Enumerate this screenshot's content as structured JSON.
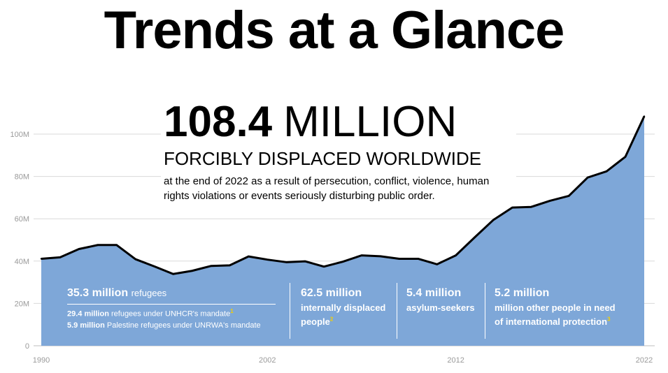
{
  "title": "Trends at a Glance",
  "headline": {
    "number": "108.4",
    "unit": "MILLION",
    "subtitle": "FORCIBLY DISPLACED WORLDWIDE",
    "description": "at the end of 2022 as a result of persecution, conflict, violence, human rights violations or events seriously disturbing public order."
  },
  "breakdown": {
    "refugees": {
      "title": "35.3 million",
      "title_unit": "refugees",
      "lines": [
        {
          "value": "29.4 million",
          "text": "refugees under UNHCR's mandate",
          "note": "1"
        },
        {
          "value": "5.9 million",
          "text": "Palestine refugees under UNRWA's mandate",
          "note": ""
        }
      ]
    },
    "idps": {
      "title": "62.5 million",
      "line1": "internally displaced",
      "line2": "people",
      "note": "2"
    },
    "asylum": {
      "title": "5.4 million",
      "line1": "asylum-seekers"
    },
    "other": {
      "title": "5.2 million",
      "line1": "million other people in need",
      "line2": "of international protection",
      "note": "3"
    }
  },
  "colors": {
    "area": "#7ea7d8",
    "line": "#000000",
    "grid": "#d9d9d9",
    "tick": "#9a9a9a"
  },
  "chart_data": {
    "type": "area",
    "x": [
      1990,
      1991,
      1992,
      1993,
      1994,
      1995,
      1996,
      1997,
      1998,
      1999,
      2000,
      2001,
      2002,
      2003,
      2004,
      2005,
      2006,
      2007,
      2008,
      2009,
      2010,
      2011,
      2012,
      2013,
      2014,
      2015,
      2016,
      2017,
      2018,
      2019,
      2020,
      2021,
      2022
    ],
    "y": [
      41.1,
      41.8,
      45.7,
      47.6,
      47.6,
      40.9,
      37.5,
      33.9,
      35.4,
      37.7,
      38.0,
      42.2,
      40.7,
      39.5,
      39.9,
      37.4,
      39.7,
      42.7,
      42.3,
      41.1,
      41.1,
      38.5,
      42.7,
      51.2,
      59.5,
      65.3,
      65.6,
      68.5,
      70.8,
      79.5,
      82.4,
      89.3,
      108.4
    ],
    "y_ticks": [
      "0",
      "20M",
      "40M",
      "60M",
      "80M",
      "100M"
    ],
    "x_ticks": [
      "1990",
      "2002",
      "2012",
      "2022"
    ],
    "ylim": [
      0,
      108.4
    ],
    "grid": true
  }
}
